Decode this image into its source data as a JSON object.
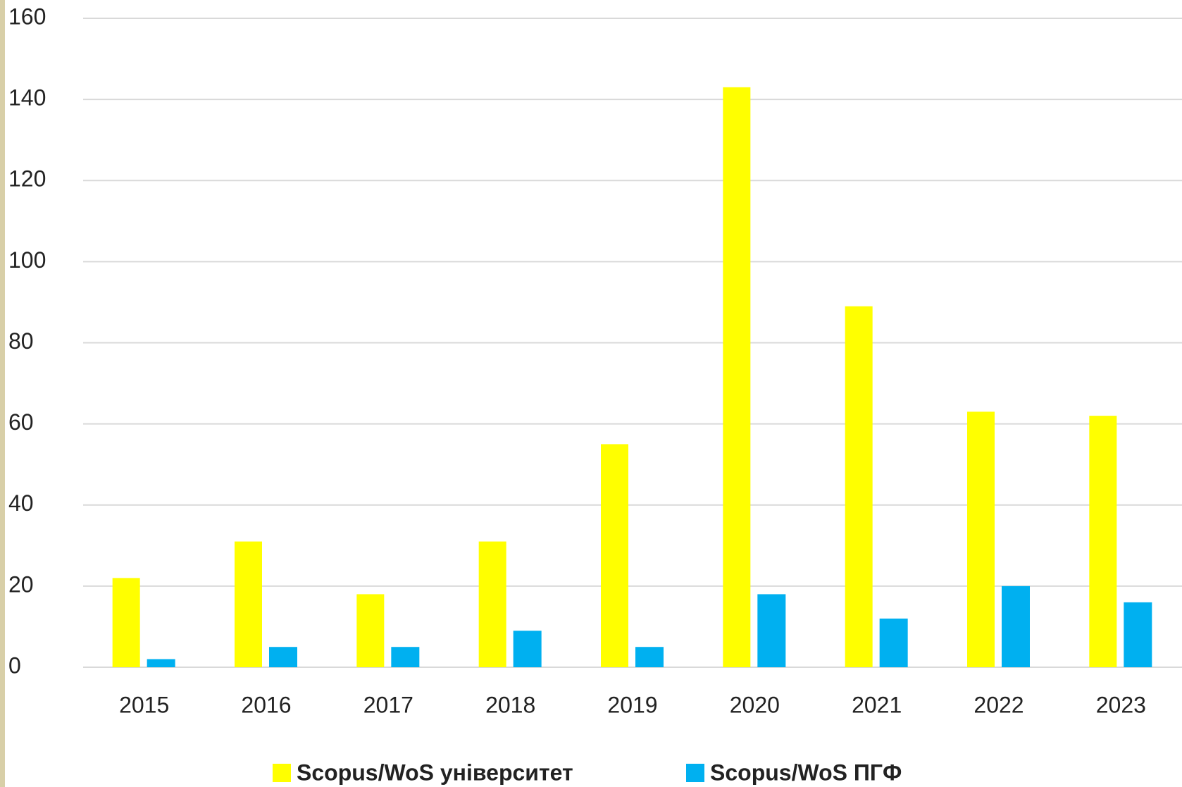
{
  "chart_data": {
    "type": "bar",
    "categories": [
      "2015",
      "2016",
      "2017",
      "2018",
      "2019",
      "2020",
      "2021",
      "2022",
      "2023"
    ],
    "series": [
      {
        "name": "Scopus/WoS університет",
        "color": "#ffff00",
        "values": [
          22,
          31,
          18,
          31,
          55,
          143,
          89,
          63,
          62
        ]
      },
      {
        "name": "Scopus/WoS ПГФ",
        "color": "#00b0f0",
        "values": [
          2,
          5,
          5,
          9,
          5,
          18,
          12,
          20,
          16
        ]
      }
    ],
    "ylim": [
      0,
      160
    ],
    "yticks": [
      0,
      20,
      40,
      60,
      80,
      100,
      120,
      140,
      160
    ],
    "grid": true,
    "legend": "bottom"
  }
}
